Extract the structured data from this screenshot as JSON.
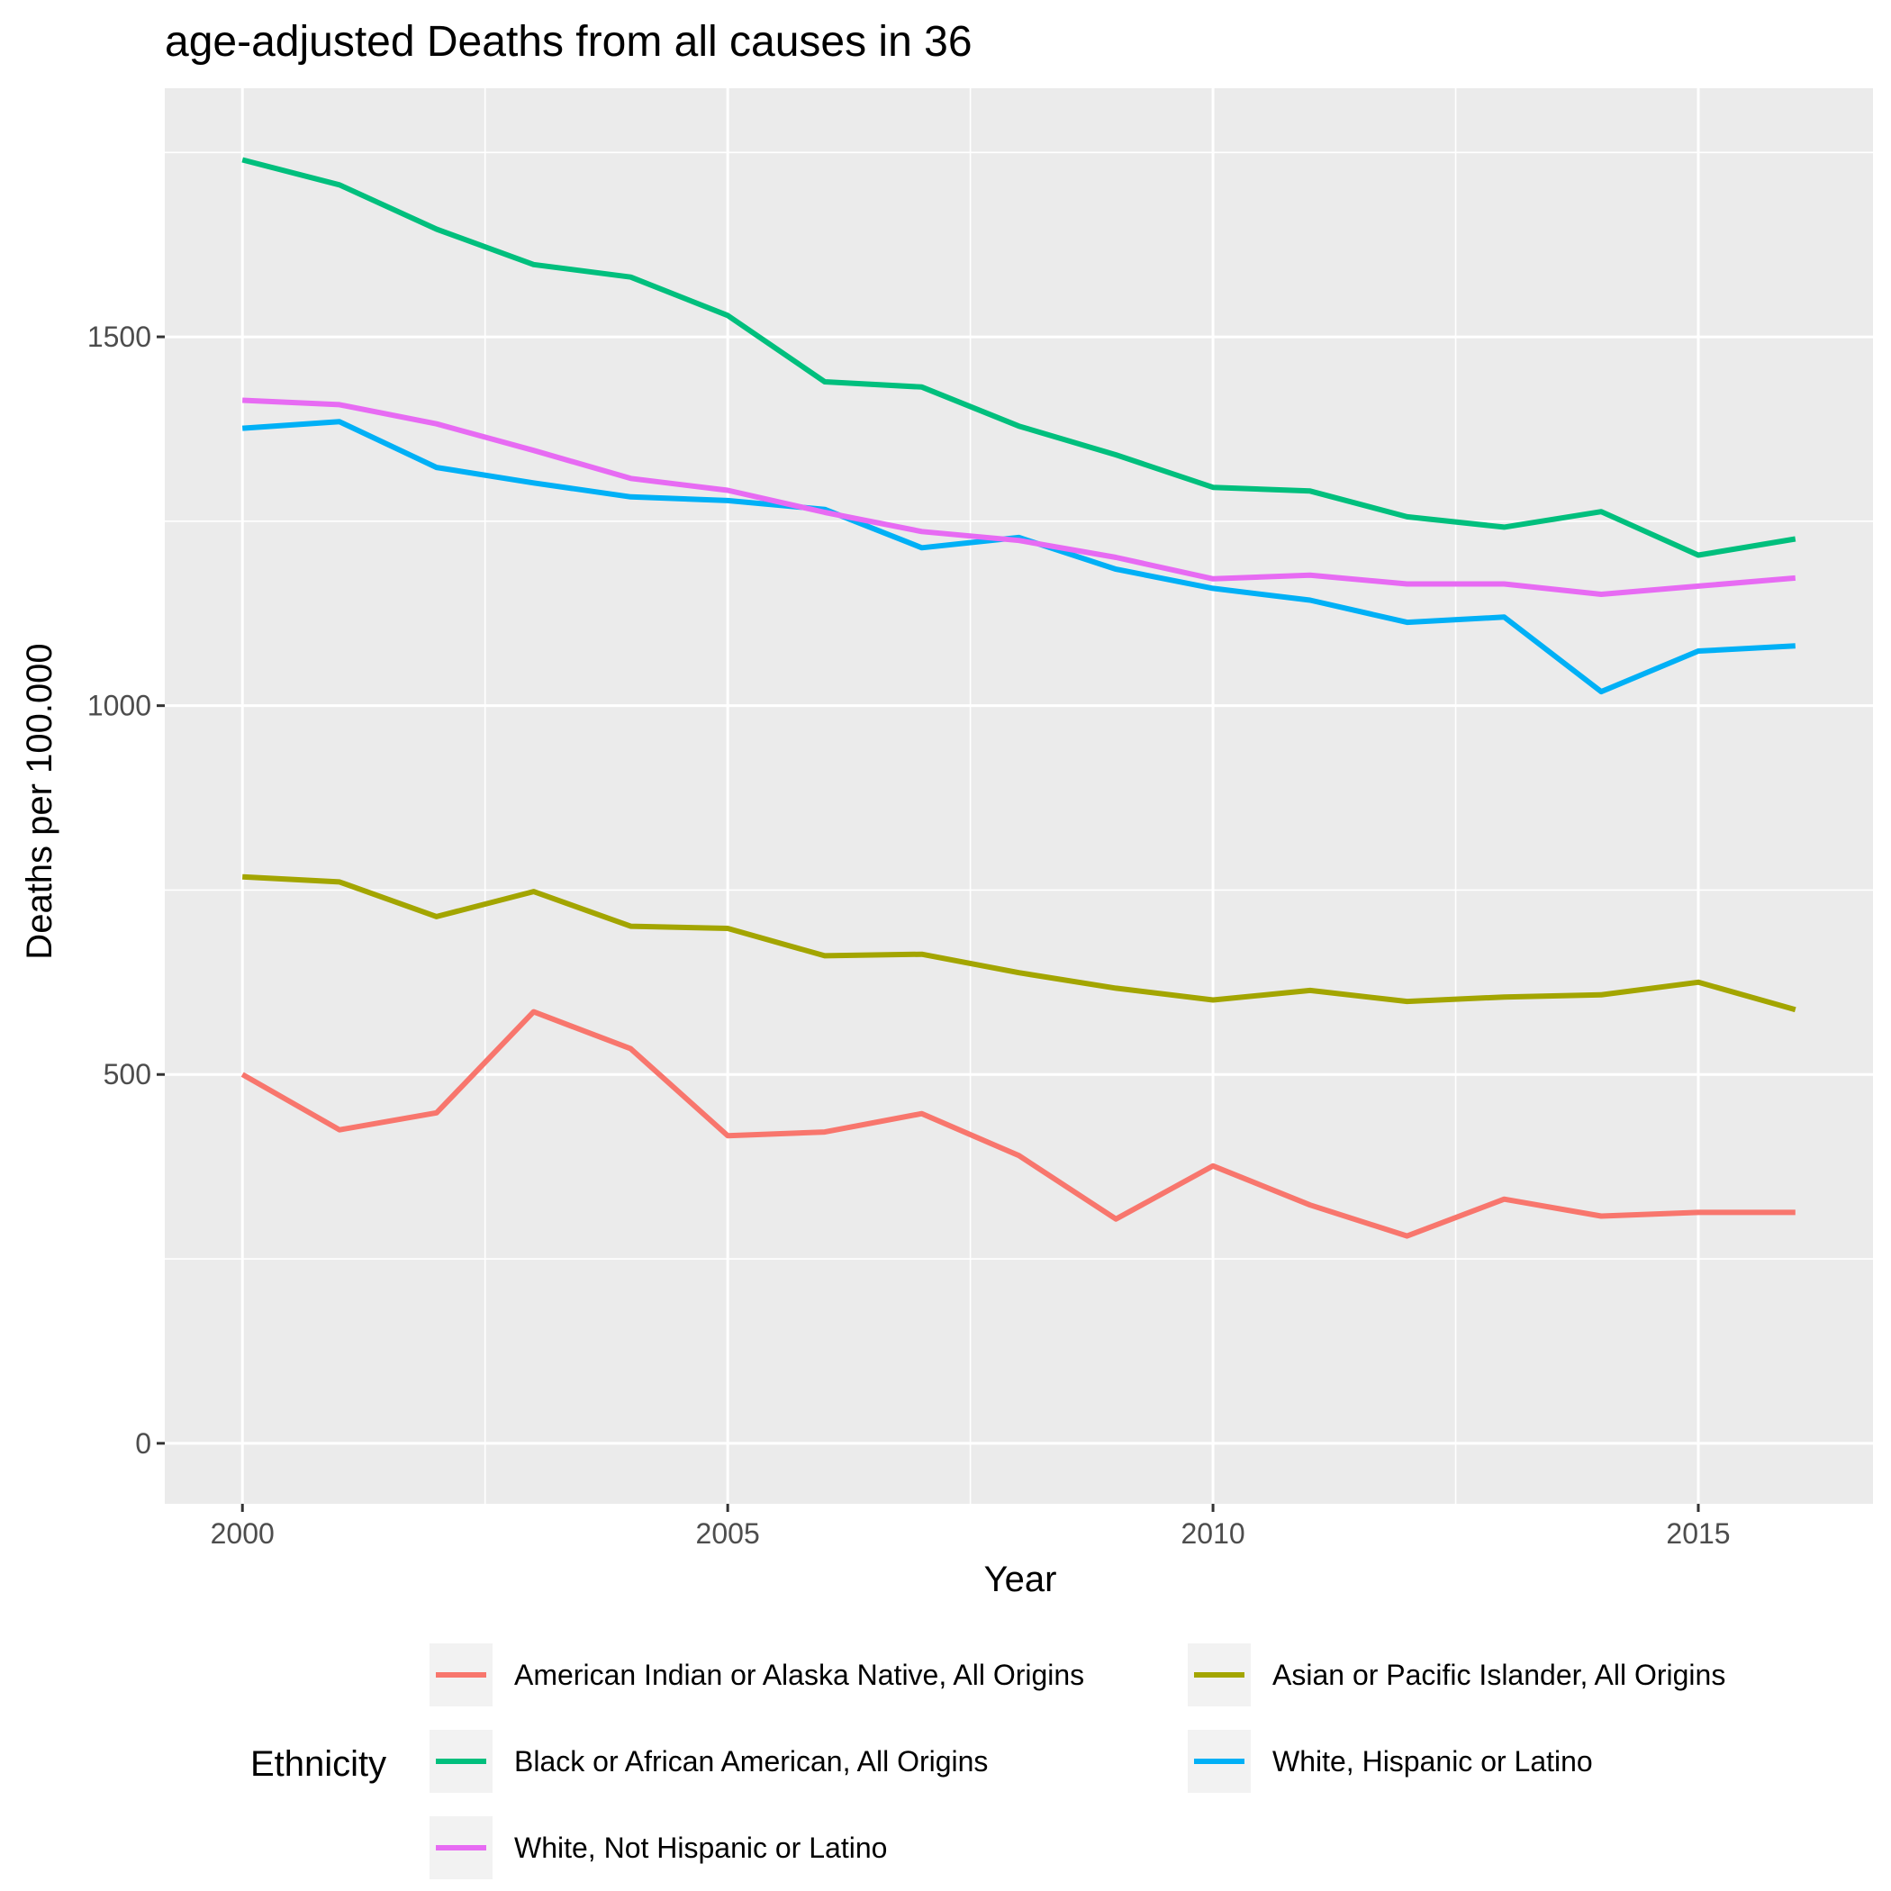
{
  "chart_data": {
    "type": "line",
    "title": "age-adjusted Deaths from all causes in 36",
    "xlabel": "Year",
    "ylabel": "Deaths per 100.000",
    "xlim": [
      1999.2,
      2016.8
    ],
    "ylim": [
      -82,
      1837
    ],
    "x_ticks": [
      2000,
      2005,
      2010,
      2015
    ],
    "x_tick_labels": [
      "2000",
      "2005",
      "2010",
      "2015"
    ],
    "x_minor_ticks": [
      2002.5,
      2007.5,
      2012.5
    ],
    "y_ticks": [
      0,
      500,
      1000,
      1500
    ],
    "y_tick_labels": [
      "0",
      "500",
      "1000",
      "1500"
    ],
    "y_minor_ticks": [
      250,
      750,
      1250,
      1750
    ],
    "grid": true,
    "panel_background": "#ebebeb",
    "grid_color": "#ffffff",
    "legend": {
      "title": "Ethnicity",
      "position": "bottom"
    },
    "x": [
      2000,
      2001,
      2002,
      2003,
      2004,
      2005,
      2006,
      2007,
      2008,
      2009,
      2010,
      2011,
      2012,
      2013,
      2014,
      2015,
      2016
    ],
    "series": [
      {
        "name": "American Indian or Alaska Native, All Origins",
        "color": "#F8766D",
        "values": [
          500,
          425,
          448,
          585,
          535,
          417,
          422,
          447,
          390,
          304,
          376,
          323,
          281,
          331,
          308,
          313,
          313
        ]
      },
      {
        "name": "Asian or Pacific Islander, All Origins",
        "color": "#A3A500",
        "values": [
          768,
          761,
          714,
          748,
          701,
          698,
          661,
          663,
          638,
          617,
          601,
          614,
          599,
          605,
          608,
          625,
          588
        ]
      },
      {
        "name": "Black or African American, All Origins",
        "color": "#00BF7D",
        "values": [
          1740,
          1706,
          1646,
          1598,
          1581,
          1529,
          1439,
          1432,
          1379,
          1340,
          1296,
          1291,
          1256,
          1242,
          1263,
          1204,
          1226
        ]
      },
      {
        "name": "White, Hispanic or Latino",
        "color": "#00B0F6",
        "values": [
          1376,
          1385,
          1323,
          1302,
          1283,
          1278,
          1266,
          1214,
          1228,
          1185,
          1159,
          1143,
          1113,
          1120,
          1019,
          1074,
          1081
        ]
      },
      {
        "name": "White, Not Hispanic or Latino",
        "color": "#E76BF3",
        "values": [
          1414,
          1408,
          1382,
          1346,
          1308,
          1292,
          1262,
          1236,
          1224,
          1201,
          1172,
          1177,
          1165,
          1165,
          1151,
          1162,
          1173
        ]
      }
    ]
  }
}
